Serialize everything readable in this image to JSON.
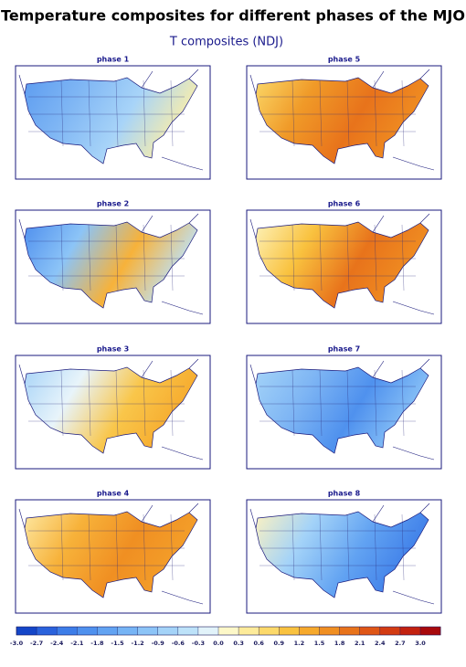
{
  "title": "Temperature composites for different phases of the MJO",
  "subtitle": "T composites (NDJ)",
  "panels": [
    {
      "title": "phase 1"
    },
    {
      "title": "phase 2"
    },
    {
      "title": "phase 3"
    },
    {
      "title": "phase 4"
    },
    {
      "title": "phase 5"
    },
    {
      "title": "phase 6"
    },
    {
      "title": "phase 7"
    },
    {
      "title": "phase 8"
    }
  ],
  "colorbar": {
    "ticks": [
      {
        "value": -3,
        "label": "-3.0"
      },
      -2.7,
      -2.4,
      -2.1,
      -1.8,
      -1.5,
      -1.2,
      -0.9,
      -0.6,
      -0.3,
      {
        "value": 0,
        "label": "0.0"
      },
      0.3,
      0.6,
      0.9,
      1.2,
      1.5,
      1.8,
      2.1,
      2.4,
      2.7,
      {
        "value": 3,
        "label": "3.0"
      }
    ],
    "colors": [
      "#1446c8",
      "#2a62dc",
      "#3d7de8",
      "#4f91ee",
      "#62a3f2",
      "#76b4f5",
      "#8cc4f7",
      "#a4d3f8",
      "#bde2f9",
      "#e2f3fa",
      "#fdf8c8",
      "#fdeb9a",
      "#fcd96a",
      "#f9c23f",
      "#f6a92c",
      "#f08f22",
      "#e8731b",
      "#df5616",
      "#d33b12",
      "#c3210f",
      "#a8090c"
    ]
  }
}
